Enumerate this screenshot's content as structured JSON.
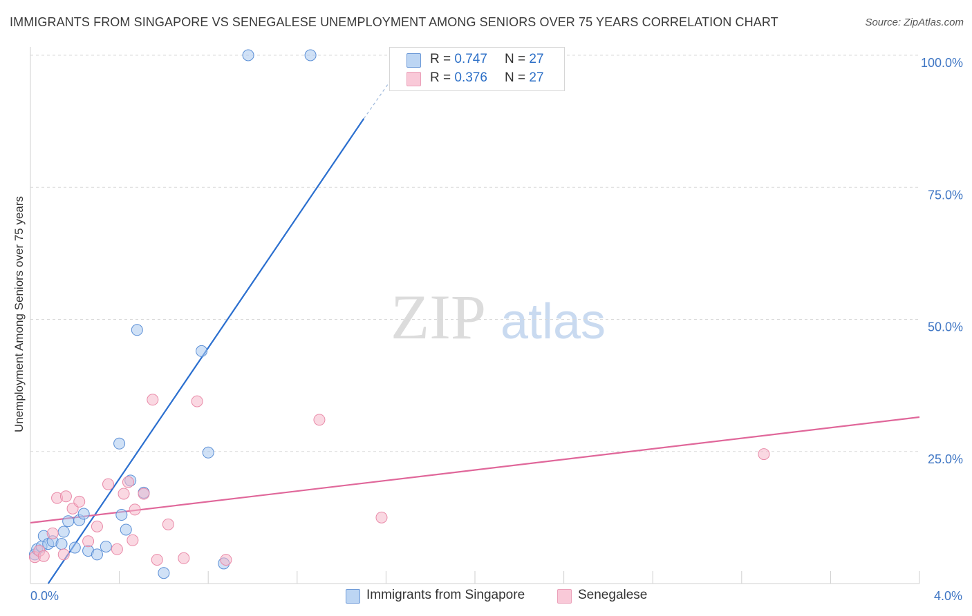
{
  "title": "IMMIGRANTS FROM SINGAPORE VS SENEGALESE UNEMPLOYMENT AMONG SENIORS OVER 75 YEARS CORRELATION CHART",
  "source": "Source: ZipAtlas.com",
  "watermark": {
    "zip": "ZIP",
    "atlas": "atlas"
  },
  "legend": [
    {
      "r_label": "R =",
      "r_value": "0.747",
      "n_label": "N =",
      "n_value": "27"
    },
    {
      "r_label": "R =",
      "r_value": "0.376",
      "n_label": "N =",
      "n_value": "27"
    }
  ],
  "colors": {
    "blue_fill": "#a9c8ef",
    "blue_stroke": "#5b8fd6",
    "blue_line": "#2b6fcf",
    "pink_fill": "#f5b8cb",
    "pink_stroke": "#e98aa8",
    "pink_line": "#e0679a",
    "grid": "#d9d9d9",
    "tick_label": "#3f76c4"
  },
  "chart_data": {
    "type": "scatter",
    "title": "IMMIGRANTS FROM SINGAPORE VS SENEGALESE UNEMPLOYMENT AMONG SENIORS OVER 75 YEARS CORRELATION CHART",
    "xlabel": "",
    "ylabel": "Unemployment Among Seniors over 75 years",
    "xlim": [
      0,
      4.0
    ],
    "ylim": [
      0,
      100
    ],
    "x_tick_labels": [
      "0.0%",
      "4.0%"
    ],
    "y_ticks": [
      25,
      50,
      75,
      100
    ],
    "y_tick_labels": [
      "25.0%",
      "50.0%",
      "75.0%",
      "100.0%"
    ],
    "series": [
      {
        "name": "Immigrants from Singapore",
        "color": "blue",
        "r": 0.747,
        "n": 27,
        "trend": {
          "x0": 0.08,
          "y0": 0.0,
          "x1": 1.5,
          "y1": 88.0,
          "dash_to_x": 1.7,
          "dash_to_y": 100.0
        },
        "points": [
          [
            0.02,
            5.5
          ],
          [
            0.03,
            6.5
          ],
          [
            0.05,
            7.0
          ],
          [
            0.06,
            9.0
          ],
          [
            0.08,
            7.5
          ],
          [
            0.1,
            8.0
          ],
          [
            0.14,
            7.5
          ],
          [
            0.15,
            9.8
          ],
          [
            0.17,
            11.8
          ],
          [
            0.2,
            6.8
          ],
          [
            0.22,
            12.0
          ],
          [
            0.24,
            13.2
          ],
          [
            0.26,
            6.2
          ],
          [
            0.3,
            5.5
          ],
          [
            0.34,
            7.0
          ],
          [
            0.4,
            26.5
          ],
          [
            0.41,
            13.0
          ],
          [
            0.43,
            10.2
          ],
          [
            0.45,
            19.5
          ],
          [
            0.48,
            48.0
          ],
          [
            0.51,
            17.2
          ],
          [
            0.6,
            2.0
          ],
          [
            0.77,
            44.0
          ],
          [
            0.8,
            24.8
          ],
          [
            0.87,
            3.8
          ],
          [
            0.98,
            100.0
          ],
          [
            1.26,
            100.0
          ]
        ]
      },
      {
        "name": "Senegalese",
        "color": "pink",
        "r": 0.376,
        "n": 27,
        "trend": {
          "x0": 0.0,
          "y0": 11.5,
          "x1": 4.0,
          "y1": 31.5
        },
        "points": [
          [
            0.02,
            5.0
          ],
          [
            0.04,
            6.2
          ],
          [
            0.06,
            5.2
          ],
          [
            0.1,
            9.5
          ],
          [
            0.12,
            16.2
          ],
          [
            0.15,
            5.5
          ],
          [
            0.16,
            16.5
          ],
          [
            0.19,
            14.2
          ],
          [
            0.22,
            15.5
          ],
          [
            0.26,
            8.0
          ],
          [
            0.3,
            10.8
          ],
          [
            0.35,
            18.8
          ],
          [
            0.39,
            6.5
          ],
          [
            0.42,
            17.0
          ],
          [
            0.44,
            19.2
          ],
          [
            0.46,
            8.2
          ],
          [
            0.47,
            14.0
          ],
          [
            0.51,
            17.0
          ],
          [
            0.55,
            34.8
          ],
          [
            0.57,
            4.5
          ],
          [
            0.62,
            11.2
          ],
          [
            0.69,
            4.8
          ],
          [
            0.75,
            34.5
          ],
          [
            0.88,
            4.5
          ],
          [
            1.3,
            31.0
          ],
          [
            1.58,
            12.5
          ],
          [
            3.3,
            24.5
          ]
        ]
      }
    ]
  }
}
